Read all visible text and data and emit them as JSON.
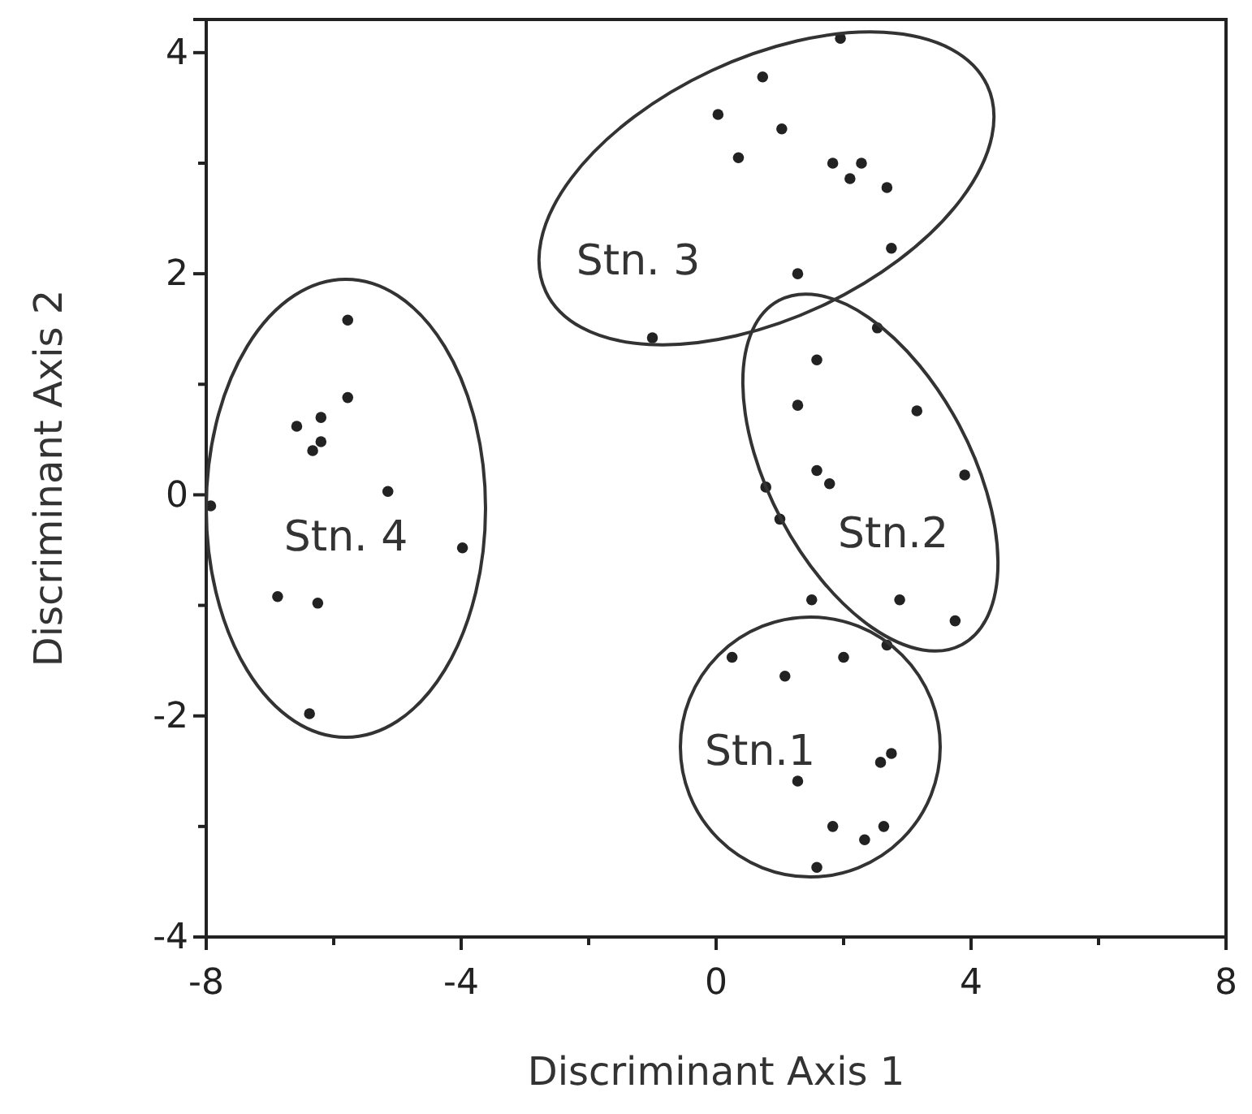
{
  "chart_data": {
    "type": "scatter",
    "xlabel": "Discriminant Axis 1",
    "ylabel": "Discriminant Axis 2",
    "xlim": [
      -8,
      8
    ],
    "ylim": [
      -4,
      4.3
    ],
    "xticks": [
      -8,
      {
        "value": -6,
        "label": null
      },
      -4,
      {
        "value": -2,
        "label": null
      },
      0,
      {
        "value": 2,
        "label": null
      },
      4,
      {
        "value": 6,
        "label": null
      },
      8
    ],
    "yticks": [
      -4,
      {
        "value": -3,
        "label": null
      },
      -2,
      {
        "value": -1,
        "label": null
      },
      0,
      {
        "value": 1,
        "label": null
      },
      2,
      {
        "value": 3,
        "label": null
      },
      4
    ],
    "grid": false,
    "marker": "circle",
    "annotations": [
      "Stn.1",
      "Stn.2",
      "Stn. 3",
      "Stn. 4"
    ],
    "series": [
      {
        "color": "#222222",
        "x": [
          0.25,
          1.08,
          2.0,
          2.68,
          2.58,
          2.75,
          1.28,
          1.83,
          2.33,
          2.63,
          1.58
        ],
        "values": [
          -1.47,
          -1.64,
          -1.47,
          -1.36,
          -2.42,
          -2.34,
          -2.59,
          -3.0,
          -3.12,
          -3.0,
          -3.37
        ]
      },
      {
        "color": "#222222",
        "x": [
          2.53,
          1.58,
          1.28,
          3.15,
          1.78,
          0.78,
          3.9,
          1.0,
          1.5,
          2.88,
          3.75,
          2.68
        ],
        "values": [
          1.51,
          1.22,
          0.81,
          0.76,
          0.1,
          0.07,
          0.18,
          -0.22,
          -0.95,
          -0.95,
          -1.14,
          2.78
        ]
      },
      {
        "color": "#222222",
        "x": [
          1.95,
          0.73,
          0.03,
          1.03,
          0.35,
          1.83,
          2.28,
          2.1,
          2.75,
          1.28,
          -1.0,
          1.58
        ],
        "values": [
          4.13,
          3.78,
          3.44,
          3.31,
          3.05,
          3.0,
          3.0,
          2.86,
          2.23,
          2.0,
          1.42,
          0.22
        ]
      },
      {
        "color": "#222222",
        "x": [
          -5.78,
          -5.78,
          -6.58,
          -6.2,
          -6.2,
          -6.33,
          -7.93,
          -5.15,
          -3.98,
          -6.88,
          -6.25,
          -6.38
        ],
        "values": [
          1.58,
          0.88,
          0.62,
          0.7,
          0.48,
          0.4,
          -0.1,
          0.03,
          -0.48,
          -0.92,
          -0.98,
          -1.98
        ]
      }
    ]
  }
}
